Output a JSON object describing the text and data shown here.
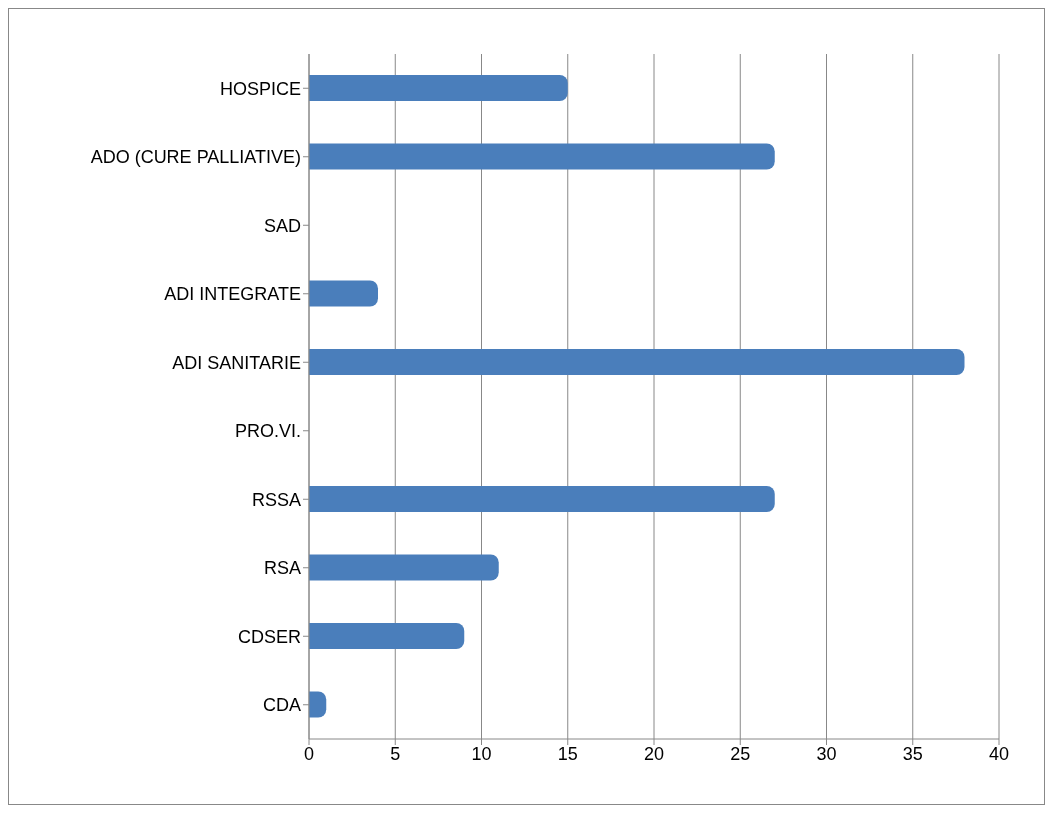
{
  "chart_data": {
    "type": "bar",
    "orientation": "horizontal",
    "categories": [
      "HOSPICE",
      "ADO (CURE PALLIATIVE)",
      "SAD",
      "ADI INTEGRATE",
      "ADI SANITARIE",
      "PRO.VI.",
      "RSSA",
      "RSA",
      "CDSER",
      "CDA"
    ],
    "values": [
      15,
      27,
      0,
      4,
      38,
      0,
      27,
      11,
      9,
      1
    ],
    "color": "#4a7ebb",
    "xlim": [
      0,
      40
    ],
    "xticks": [
      0,
      5,
      10,
      15,
      20,
      25,
      30,
      35,
      40
    ],
    "grid": "x"
  }
}
